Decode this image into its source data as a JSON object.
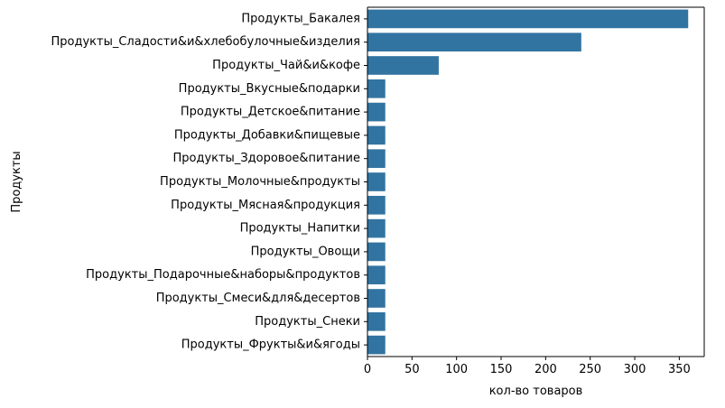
{
  "chart_data": {
    "type": "bar",
    "orientation": "horizontal",
    "title": "",
    "xlabel": "кол-во товаров",
    "ylabel": "Продукты",
    "xlim": [
      0,
      378
    ],
    "xticks": [
      0,
      50,
      100,
      150,
      200,
      250,
      300,
      350
    ],
    "grid": false,
    "legend": "none",
    "bar_color": "#3274a1",
    "categories": [
      "Продукты_Бакалея",
      "Продукты_Сладости&и&хлебобулочные&изделия",
      "Продукты_Чай&и&кофе",
      "Продукты_Вкусные&подарки",
      "Продукты_Детское&питание",
      "Продукты_Добавки&пищевые",
      "Продукты_Здоровое&питание",
      "Продукты_Молочные&продукты",
      "Продукты_Мясная&продукция",
      "Продукты_Напитки",
      "Продукты_Овощи",
      "Продукты_Подарочные&наборы&продуктов",
      "Продукты_Смеси&для&десертов",
      "Продукты_Снеки",
      "Продукты_Фрукты&и&ягоды"
    ],
    "values": [
      360,
      240,
      80,
      20,
      20,
      20,
      20,
      20,
      20,
      20,
      20,
      20,
      20,
      20,
      20
    ]
  }
}
